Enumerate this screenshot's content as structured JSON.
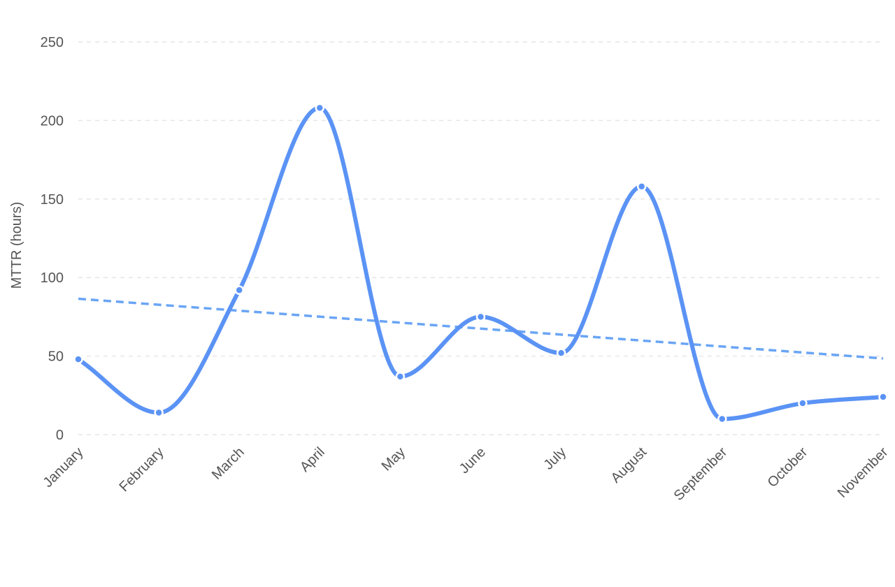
{
  "chart_data": {
    "type": "line",
    "title": "",
    "xlabel": "",
    "ylabel": "MTTR (hours)",
    "categories": [
      "January",
      "February",
      "March",
      "April",
      "May",
      "June",
      "July",
      "August",
      "September",
      "October",
      "November"
    ],
    "series": [
      {
        "values": [
          48,
          14,
          92,
          208,
          37,
          75,
          52,
          158,
          10,
          20,
          24
        ],
        "color": "#5b93f5",
        "smooth": true,
        "markers": true
      },
      {
        "values": [
          86.5,
          82.7,
          78.9,
          75.1,
          71.3,
          67.5,
          63.7,
          59.9,
          56.1,
          52.3,
          48.5
        ],
        "color": "#6aa5f5",
        "dashed": true,
        "kind": "trend"
      }
    ],
    "ylim": [
      0,
      250
    ],
    "yticks": [
      0,
      50,
      100,
      150,
      200,
      250
    ],
    "grid": true,
    "legend": "none"
  }
}
